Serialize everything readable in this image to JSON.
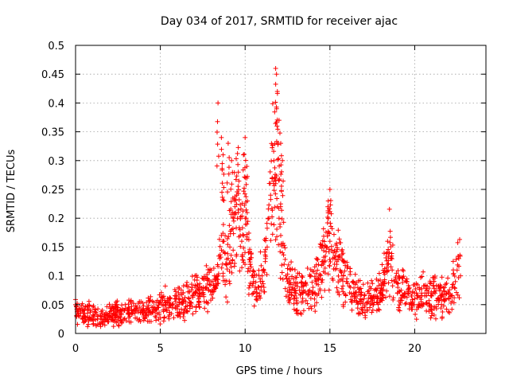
{
  "chart_data": {
    "type": "scatter",
    "title": "Day 034 of 2017, SRMTID for receiver ajac",
    "xlabel": "GPS time / hours",
    "ylabel": "SRMTID / TECUs",
    "xlim": [
      0,
      24.2
    ],
    "ylim": [
      0,
      0.5
    ],
    "x_ticks": [
      0,
      5,
      10,
      15,
      20
    ],
    "y_ticks": [
      0,
      0.05,
      0.1,
      0.15,
      0.2,
      0.25,
      0.3,
      0.35,
      0.4,
      0.45,
      0.5
    ],
    "x_tick_labels": [
      "0",
      "5",
      "10",
      "15",
      "20"
    ],
    "y_tick_labels": [
      "0",
      "0.05",
      "0.1",
      "0.15",
      "0.2",
      "0.25",
      "0.3",
      "0.35",
      "0.4",
      "0.45",
      "0.5"
    ],
    "grid": true,
    "marker": "plus",
    "series": [
      {
        "name": "SRMTID",
        "color": "#ff0000",
        "x": [
          0.0,
          0.1,
          0.2,
          0.3,
          0.5,
          0.7,
          0.9,
          1.1,
          1.3,
          1.5,
          1.7,
          1.9,
          2.1,
          2.3,
          2.5,
          2.7,
          2.9,
          3.1,
          3.3,
          3.5,
          3.7,
          3.9,
          4.1,
          4.3,
          4.5,
          4.7,
          4.9,
          5.1,
          5.3,
          5.5,
          5.7,
          5.9,
          6.1,
          6.3,
          6.5,
          6.7,
          6.9,
          7.1,
          7.3,
          7.5,
          7.7,
          7.9,
          8.0,
          8.1,
          8.2,
          8.3,
          8.4,
          8.5,
          8.6,
          8.7,
          8.8,
          8.9,
          9.0,
          9.1,
          9.2,
          9.3,
          9.4,
          9.5,
          9.6,
          9.7,
          9.8,
          9.9,
          10.0,
          10.1,
          10.2,
          10.3,
          10.4,
          10.5,
          10.6,
          10.7,
          10.8,
          10.9,
          11.0,
          11.1,
          11.2,
          11.3,
          11.4,
          11.5,
          11.6,
          11.7,
          11.8,
          11.9,
          12.0,
          12.1,
          12.2,
          12.3,
          12.4,
          12.5,
          12.6,
          12.7,
          12.8,
          12.9,
          13.0,
          13.2,
          13.4,
          13.6,
          13.8,
          14.0,
          14.2,
          14.4,
          14.6,
          14.8,
          15.0,
          15.2,
          15.4,
          15.6,
          15.8,
          16.0,
          16.2,
          16.4,
          16.6,
          16.8,
          17.0,
          17.2,
          17.4,
          17.6,
          17.8,
          18.0,
          18.2,
          18.4,
          18.5,
          18.6,
          18.8,
          19.0,
          19.2,
          19.4,
          19.6,
          19.8,
          20.0,
          20.2,
          20.4,
          20.6,
          20.8,
          21.0,
          21.2,
          21.4,
          21.6,
          21.8,
          22.0,
          22.2,
          22.4,
          22.5,
          22.6,
          22.7
        ],
        "y": [
          0.05,
          0.04,
          0.03,
          0.035,
          0.03,
          0.035,
          0.04,
          0.03,
          0.025,
          0.03,
          0.025,
          0.03,
          0.03,
          0.035,
          0.04,
          0.035,
          0.04,
          0.035,
          0.04,
          0.035,
          0.04,
          0.04,
          0.035,
          0.04,
          0.045,
          0.04,
          0.045,
          0.05,
          0.05,
          0.045,
          0.05,
          0.055,
          0.05,
          0.06,
          0.055,
          0.06,
          0.065,
          0.07,
          0.07,
          0.075,
          0.08,
          0.085,
          0.09,
          0.09,
          0.1,
          0.095,
          0.1,
          0.13,
          0.17,
          0.16,
          0.14,
          0.12,
          0.13,
          0.15,
          0.18,
          0.2,
          0.22,
          0.24,
          0.21,
          0.18,
          0.16,
          0.17,
          0.2,
          0.19,
          0.14,
          0.12,
          0.1,
          0.09,
          0.08,
          0.07,
          0.08,
          0.09,
          0.1,
          0.11,
          0.13,
          0.15,
          0.2,
          0.24,
          0.27,
          0.3,
          0.26,
          0.22,
          0.2,
          0.17,
          0.14,
          0.12,
          0.1,
          0.09,
          0.08,
          0.085,
          0.08,
          0.075,
          0.07,
          0.075,
          0.07,
          0.07,
          0.075,
          0.08,
          0.09,
          0.1,
          0.12,
          0.15,
          0.16,
          0.14,
          0.12,
          0.11,
          0.1,
          0.09,
          0.08,
          0.07,
          0.065,
          0.06,
          0.06,
          0.055,
          0.06,
          0.065,
          0.06,
          0.07,
          0.09,
          0.12,
          0.14,
          0.13,
          0.09,
          0.08,
          0.075,
          0.07,
          0.07,
          0.065,
          0.06,
          0.065,
          0.07,
          0.065,
          0.07,
          0.065,
          0.07,
          0.06,
          0.065,
          0.06,
          0.07,
          0.08,
          0.09,
          0.11,
          0.13,
          0.1
        ]
      }
    ],
    "peaks": [
      {
        "x": 8.4,
        "y": 0.4
      },
      {
        "x": 8.6,
        "y": 0.34
      },
      {
        "x": 8.7,
        "y": 0.31
      },
      {
        "x": 9.0,
        "y": 0.33
      },
      {
        "x": 9.2,
        "y": 0.3
      },
      {
        "x": 9.6,
        "y": 0.28
      },
      {
        "x": 9.9,
        "y": 0.31
      },
      {
        "x": 10.0,
        "y": 0.34
      },
      {
        "x": 10.1,
        "y": 0.29
      },
      {
        "x": 11.8,
        "y": 0.46
      },
      {
        "x": 11.85,
        "y": 0.45
      },
      {
        "x": 11.9,
        "y": 0.42
      },
      {
        "x": 12.0,
        "y": 0.37
      },
      {
        "x": 12.1,
        "y": 0.33
      },
      {
        "x": 12.2,
        "y": 0.3
      },
      {
        "x": 15.0,
        "y": 0.25
      },
      {
        "x": 14.9,
        "y": 0.23
      },
      {
        "x": 18.4,
        "y": 0.16
      }
    ]
  }
}
